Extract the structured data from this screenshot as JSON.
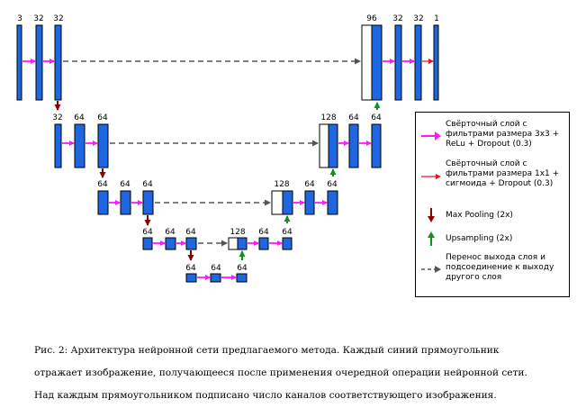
{
  "levels": [
    {
      "labels": [
        "3",
        "32",
        "32",
        "96",
        "32",
        "32",
        "1"
      ]
    },
    {
      "labels": [
        "32",
        "64",
        "64",
        "128",
        "64",
        "64"
      ]
    },
    {
      "labels": [
        "64",
        "64",
        "64",
        "128",
        "64",
        "64"
      ]
    },
    {
      "labels": [
        "64",
        "64",
        "64",
        "128",
        "64",
        "64"
      ]
    },
    {
      "labels": [
        "64",
        "64",
        "64"
      ]
    }
  ],
  "legend": {
    "items": [
      {
        "icon": "magenta-arrow-icon",
        "text": "Свёрточный слой с фильтрами размера 3x3 + ReLu + Dropout (0.3)"
      },
      {
        "icon": "red-arrow-icon",
        "text": "Свёрточный слой с фильтрами размера 1x1 + сигмоида + Dropout (0.3)"
      },
      {
        "icon": "dark-red-down-arrow-icon",
        "text": "Max Pooling (2x)"
      },
      {
        "icon": "green-up-arrow-icon",
        "text": "Upsampling (2x)"
      },
      {
        "icon": "gray-dashed-arrow-icon",
        "text": "Перенос выхода слоя и подсоединение к выходу другого слоя"
      }
    ]
  },
  "colors": {
    "block": "#1f67e0",
    "conv3": "#ff18ff",
    "conv1": "#e8141c",
    "pool": "#8b0000",
    "upsample": "#12911c",
    "skip": "#555555"
  },
  "caption": "Рис. 2: Архитектура нейронной сети предлагаемого метода. Каждый синий прямоугольник отражает изображение, получающееся после применения очередной операции нейронной сети. Над каждым прямоугольником подписано число каналов соответствующего изображения."
}
